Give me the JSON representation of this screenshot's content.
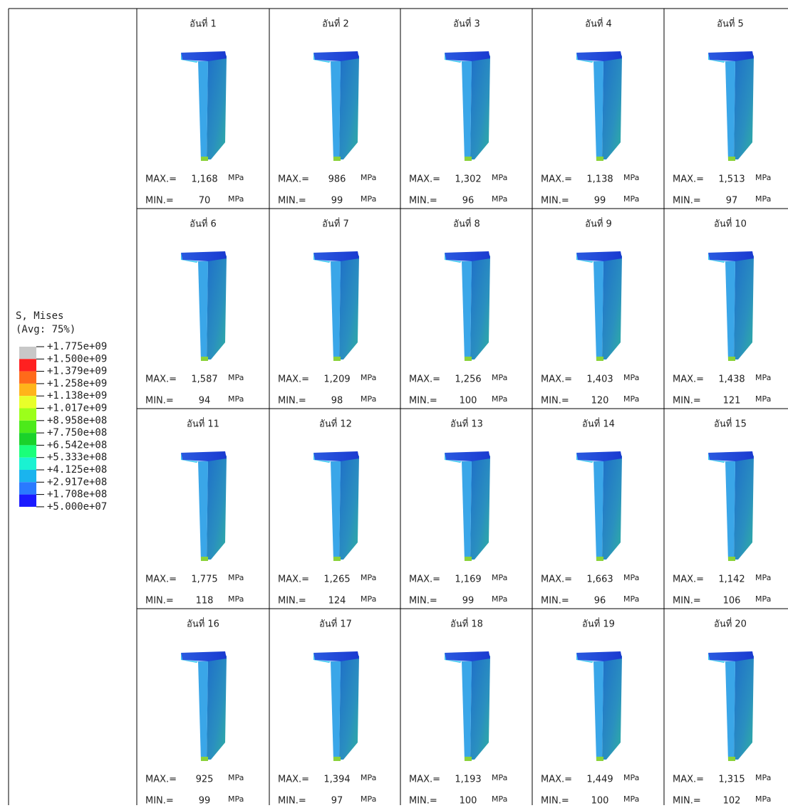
{
  "legend": {
    "title": "S, Mises",
    "subtitle": "(Avg: 75%)",
    "labels": [
      "+1.775e+09",
      "+1.500e+09",
      "+1.379e+09",
      "+1.258e+09",
      "+1.138e+09",
      "+1.017e+09",
      "+8.958e+08",
      "+7.750e+08",
      "+6.542e+08",
      "+5.333e+08",
      "+4.125e+08",
      "+2.917e+08",
      "+1.708e+08",
      "+5.000e+07"
    ],
    "colors": [
      "#c8c8c8",
      "#ff2020",
      "#ff6a1a",
      "#ffb41a",
      "#e8ff2a",
      "#9cff1a",
      "#4cea1a",
      "#1ad22a",
      "#1aff7a",
      "#1af2d2",
      "#1ab4ee",
      "#2a7aff",
      "#1a1aff"
    ]
  },
  "labels": {
    "max": "MAX.=",
    "min": "MIN.=",
    "unit": "MPa"
  },
  "cells": [
    {
      "title": "อันที่ 1",
      "max": "1,168",
      "min": "70"
    },
    {
      "title": "อันที่ 2",
      "max": "986",
      "min": "99"
    },
    {
      "title": "อันที่ 3",
      "max": "1,302",
      "min": "96"
    },
    {
      "title": "อันที่ 4",
      "max": "1,138",
      "min": "99"
    },
    {
      "title": "อันที่ 5",
      "max": "1,513",
      "min": "97"
    },
    {
      "title": "อันที่ 6",
      "max": "1,587",
      "min": "94"
    },
    {
      "title": "อันที่ 7",
      "max": "1,209",
      "min": "98"
    },
    {
      "title": "อันที่ 8",
      "max": "1,256",
      "min": "100"
    },
    {
      "title": "อันที่ 9",
      "max": "1,403",
      "min": "120"
    },
    {
      "title": "อันที่ 10",
      "max": "1,438",
      "min": "121"
    },
    {
      "title": "อันที่ 11",
      "max": "1,775",
      "min": "118"
    },
    {
      "title": "อันที่ 12",
      "max": "1,265",
      "min": "124"
    },
    {
      "title": "อันที่ 13",
      "max": "1,169",
      "min": "99"
    },
    {
      "title": "อันที่ 14",
      "max": "1,663",
      "min": "96"
    },
    {
      "title": "อันที่ 15",
      "max": "1,142",
      "min": "106"
    },
    {
      "title": "อันที่ 16",
      "max": "925",
      "min": "99"
    },
    {
      "title": "อันที่ 17",
      "max": "1,394",
      "min": "97"
    },
    {
      "title": "อันที่ 18",
      "max": "1,193",
      "min": "100"
    },
    {
      "title": "อันที่ 19",
      "max": "1,449",
      "min": "100"
    },
    {
      "title": "อันที่ 20",
      "max": "1,315",
      "min": "102"
    }
  ]
}
